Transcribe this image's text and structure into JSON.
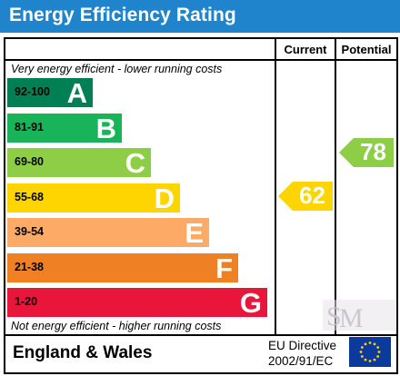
{
  "header": {
    "title": "Energy Efficiency Rating"
  },
  "columns": {
    "current": "Current",
    "potential": "Potential"
  },
  "notes": {
    "top": "Very energy efficient - lower running costs",
    "bottom": "Not energy efficient - higher running costs"
  },
  "footer": {
    "region": "England & Wales",
    "directive_line1": "EU Directive",
    "directive_line2": "2002/91/EC"
  },
  "watermark_icon": "s-m-logo-icon",
  "chart_data": {
    "type": "table",
    "bands": [
      {
        "range": "92-100",
        "letter": "A",
        "color": "#008054",
        "light_range": false
      },
      {
        "range": "81-91",
        "letter": "B",
        "color": "#19b459",
        "light_range": false
      },
      {
        "range": "69-80",
        "letter": "C",
        "color": "#8dce46",
        "light_range": false
      },
      {
        "range": "55-68",
        "letter": "D",
        "color": "#ffd500",
        "light_range": false
      },
      {
        "range": "39-54",
        "letter": "E",
        "color": "#fcaa65",
        "light_range": false
      },
      {
        "range": "21-38",
        "letter": "F",
        "color": "#ef8023",
        "light_range": false
      },
      {
        "range": "1-20",
        "letter": "G",
        "color": "#e9153b",
        "light_range": false
      }
    ],
    "current": {
      "value": 62,
      "band": "D",
      "color": "#ffd500"
    },
    "potential": {
      "value": 78,
      "band": "C",
      "color": "#8dce46"
    }
  }
}
